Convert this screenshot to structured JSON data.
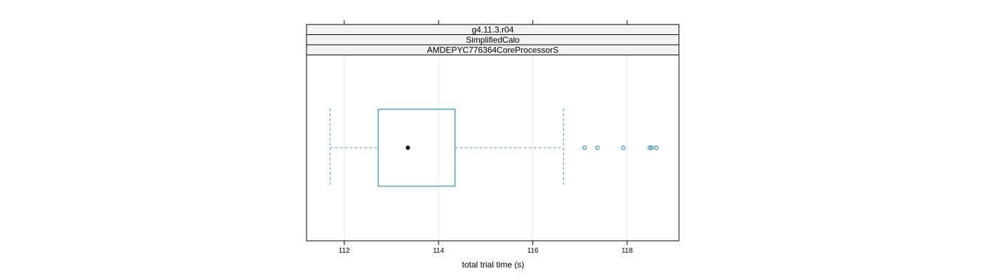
{
  "chart_data": {
    "type": "boxplot",
    "strips": [
      "g4.11.3.r04",
      "SimplifiedCalo",
      "AMDEPYC776364CoreProcessorS"
    ],
    "xlabel": "total trial time (s)",
    "ylabel": "",
    "xlim": [
      111.2,
      119.1
    ],
    "xticks": [
      112,
      114,
      116,
      118
    ],
    "grid": true,
    "box": {
      "whisker_low": 111.7,
      "q1": 112.72,
      "median": 113.35,
      "q3": 114.35,
      "whisker_high": 116.65,
      "outliers": [
        117.1,
        117.37,
        117.92,
        118.48,
        118.52,
        118.62
      ]
    },
    "colors": {
      "box": "#0080b0",
      "whisker": "#4a9fd0",
      "median_dot": "#000000",
      "strip_bg": "#f2f2f2",
      "grid": "#e6e6e6"
    }
  }
}
